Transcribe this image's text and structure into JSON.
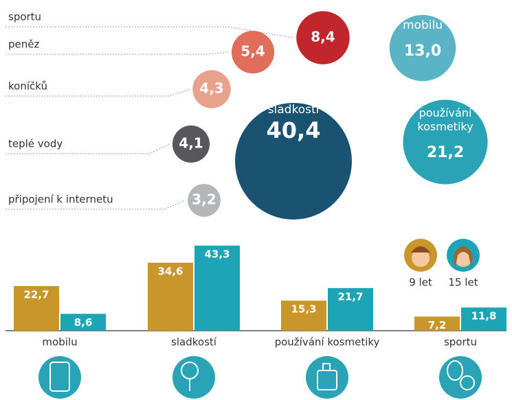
{
  "chart_data": [
    {
      "type": "bubble",
      "labels": [
        "sladkostí",
        "používání kosmetiky",
        "mobilu",
        "sportu",
        "peněz",
        "koníčků",
        "teplé vody",
        "připojení k internetu"
      ],
      "values": [
        40.4,
        21.2,
        13.0,
        8.4,
        5.4,
        4.3,
        4.1,
        3.2
      ],
      "value_labels": [
        "40,4",
        "21,2",
        "13,0",
        "8,4",
        "5,4",
        "4,3",
        "4,1",
        "3,2"
      ],
      "colors": [
        "#1a5272",
        "#2aa3b7",
        "#5ab4c5",
        "#c0262b",
        "#e06e5a",
        "#e8a28c",
        "#58585a",
        "#b4b6b8"
      ]
    },
    {
      "type": "bar",
      "categories": [
        "mobilu",
        "sladkostí",
        "používání kosmetiky",
        "sportu"
      ],
      "series": [
        {
          "name": "9 let",
          "color": "#c8962b",
          "values": [
            22.7,
            34.6,
            15.3,
            7.2
          ],
          "value_labels": [
            "22,7",
            "34,6",
            "15,3",
            "7,2"
          ]
        },
        {
          "name": "15 let",
          "color": "#1ea5b5",
          "values": [
            8.6,
            43.3,
            21.7,
            11.8
          ],
          "value_labels": [
            "8,6",
            "43,3",
            "21,7",
            "11,8"
          ]
        }
      ]
    }
  ]
}
